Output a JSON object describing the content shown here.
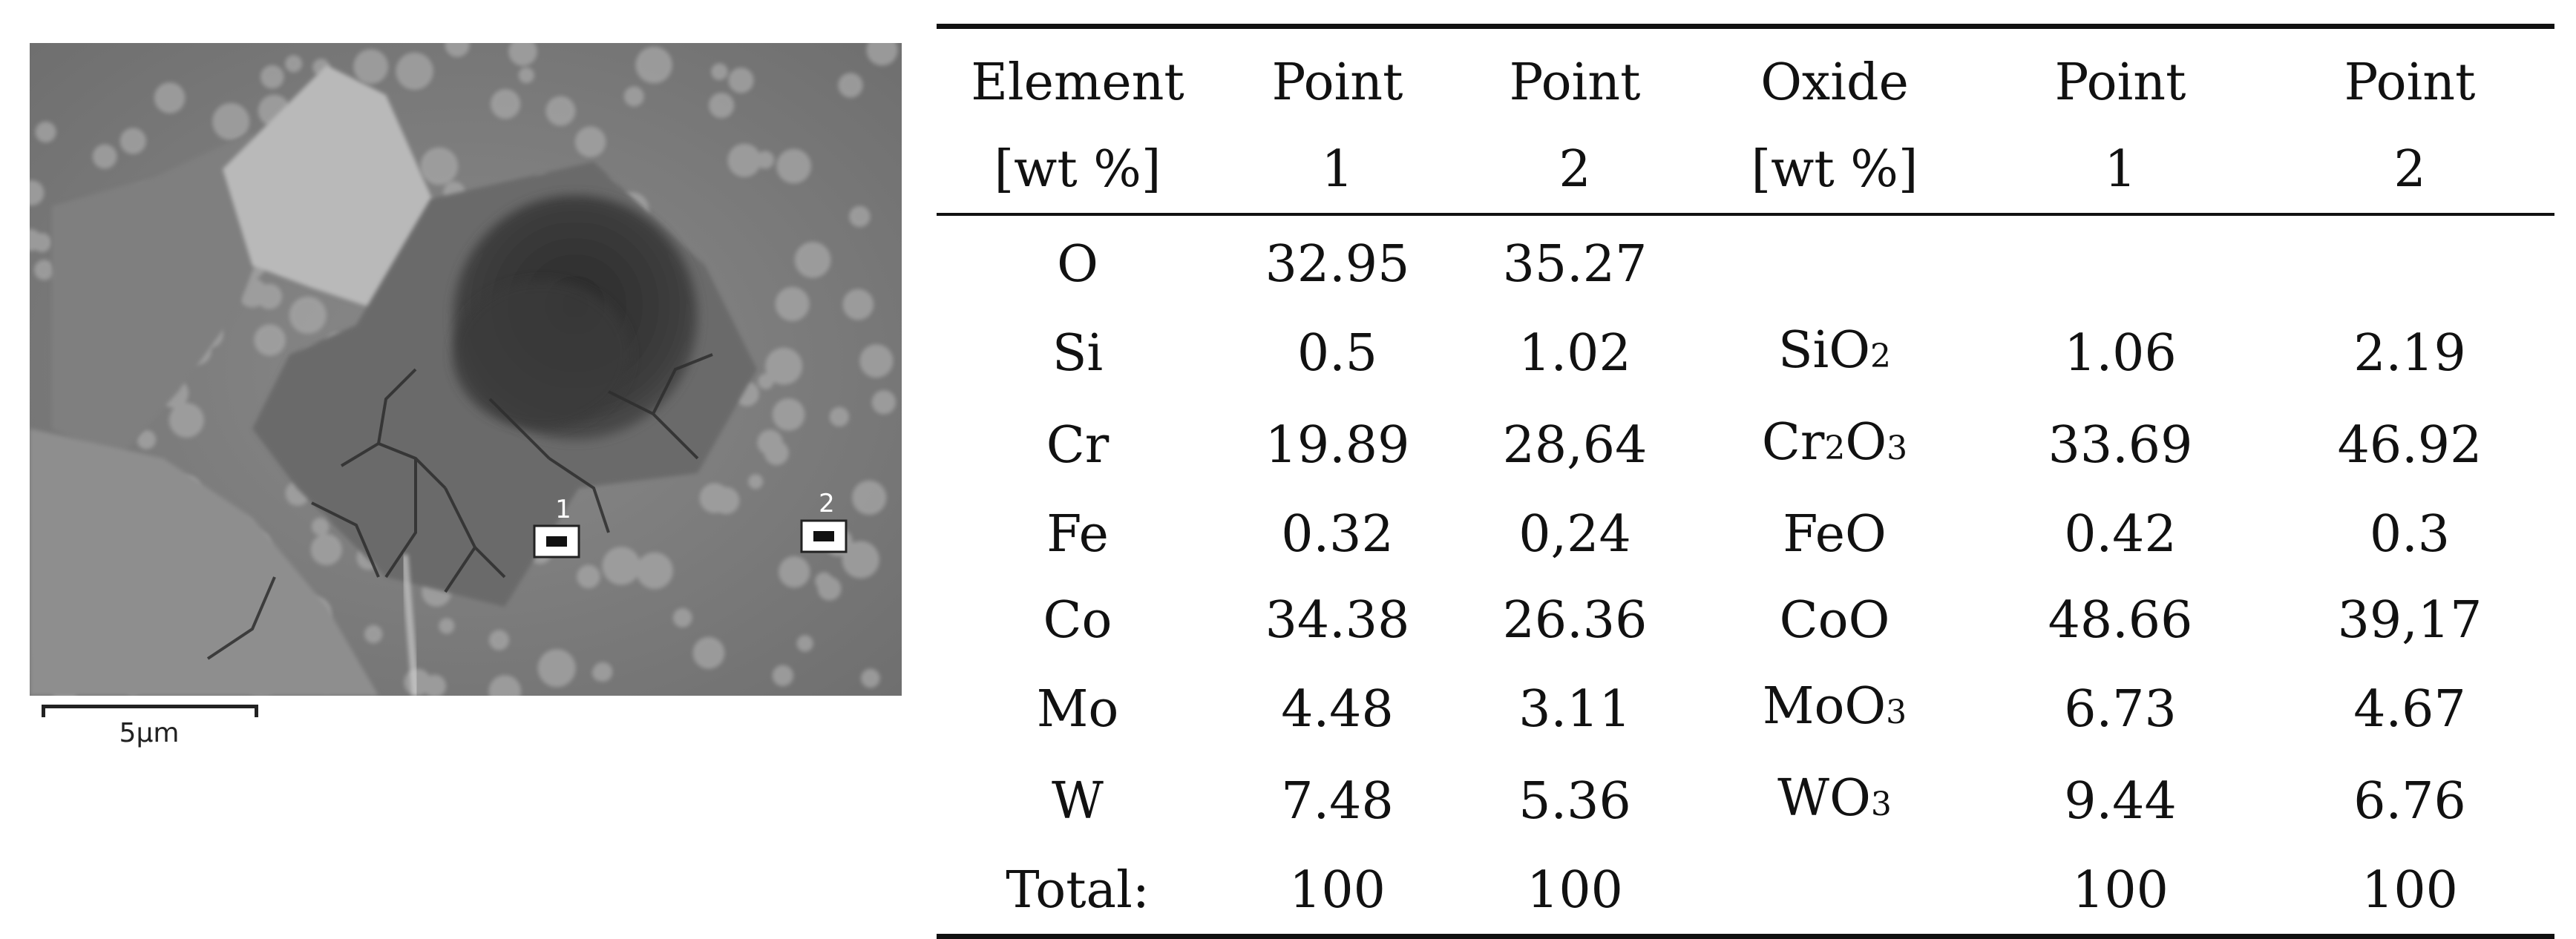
{
  "sem": {
    "scale_label": "5µm",
    "markers": [
      {
        "label": "1"
      },
      {
        "label": "2"
      }
    ]
  },
  "table": {
    "header_row1": [
      "Element",
      "Point",
      "Point",
      "Oxide",
      "Point",
      "Point"
    ],
    "header_row2": [
      "[wt %]",
      "1",
      "2",
      "[wt %]",
      "1",
      "2"
    ],
    "rows": [
      {
        "element": "O",
        "p1": "32.95",
        "p2": "35.27",
        "oxide": "",
        "oxide_sub": "",
        "o1": "",
        "o2": ""
      },
      {
        "element": "Si",
        "p1": "0.5",
        "p2": "1.02",
        "oxide": "SiO2",
        "oxide_sub": "SiO<sub>2</sub>",
        "o1": "1.06",
        "o2": "2.19"
      },
      {
        "element": "Cr",
        "p1": "19.89",
        "p2": "28,64",
        "oxide": "Cr2O3",
        "oxide_sub": "Cr<sub>2</sub>O<sub>3</sub>",
        "o1": "33.69",
        "o2": "46.92"
      },
      {
        "element": "Fe",
        "p1": "0.32",
        "p2": "0,24",
        "oxide": "FeO",
        "oxide_sub": "FeO",
        "o1": "0.42",
        "o2": "0.3"
      },
      {
        "element": "Co",
        "p1": "34.38",
        "p2": "26.36",
        "oxide": "CoO",
        "oxide_sub": "CoO",
        "o1": "48.66",
        "o2": "39,17"
      },
      {
        "element": "Mo",
        "p1": "4.48",
        "p2": "3.11",
        "oxide": "MoO3",
        "oxide_sub": "MoO<sub>3</sub>",
        "o1": "6.73",
        "o2": "4.67"
      },
      {
        "element": "W",
        "p1": "7.48",
        "p2": "5.36",
        "oxide": "WO3",
        "oxide_sub": "WO<sub>3</sub>",
        "o1": "9.44",
        "o2": "6.76"
      },
      {
        "element": "Total:",
        "p1": "100",
        "p2": "100",
        "oxide": "",
        "oxide_sub": "",
        "o1": "100",
        "o2": "100"
      }
    ]
  }
}
